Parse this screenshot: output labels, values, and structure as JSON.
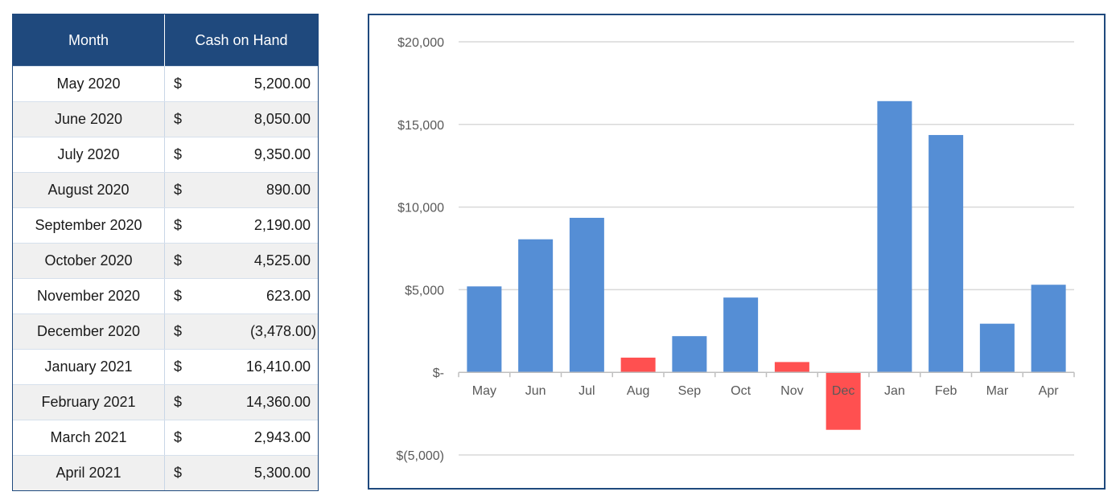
{
  "table": {
    "headers": {
      "month": "Month",
      "cash": "Cash on Hand"
    },
    "currency_symbol": "$",
    "rows": [
      {
        "month": "May 2020",
        "amount": "5,200.00"
      },
      {
        "month": "June 2020",
        "amount": "8,050.00"
      },
      {
        "month": "July 2020",
        "amount": "9,350.00"
      },
      {
        "month": "August 2020",
        "amount": "890.00"
      },
      {
        "month": "September 2020",
        "amount": "2,190.00"
      },
      {
        "month": "October 2020",
        "amount": "4,525.00"
      },
      {
        "month": "November 2020",
        "amount": "623.00"
      },
      {
        "month": "December 2020",
        "amount": "(3,478.00)"
      },
      {
        "month": "January 2021",
        "amount": "16,410.00"
      },
      {
        "month": "February 2021",
        "amount": "14,360.00"
      },
      {
        "month": "March 2021",
        "amount": "2,943.00"
      },
      {
        "month": "April 2021",
        "amount": "5,300.00"
      }
    ]
  },
  "chart_data": {
    "type": "bar",
    "categories": [
      "May",
      "Jun",
      "Jul",
      "Aug",
      "Sep",
      "Oct",
      "Nov",
      "Dec",
      "Jan",
      "Feb",
      "Mar",
      "Apr"
    ],
    "values": [
      5200,
      8050,
      9350,
      890,
      2190,
      4525,
      623,
      -3478,
      16410,
      14360,
      2943,
      5300
    ],
    "bar_colors": [
      "#558ed5",
      "#558ed5",
      "#558ed5",
      "#ff5050",
      "#558ed5",
      "#558ed5",
      "#ff5050",
      "#ff5050",
      "#558ed5",
      "#558ed5",
      "#558ed5",
      "#558ed5"
    ],
    "ylim": [
      -5000,
      20000
    ],
    "yticks": [
      20000,
      15000,
      10000,
      5000,
      0,
      -5000
    ],
    "ytick_labels": [
      "$20,000",
      "$15,000",
      "$10,000",
      "$5,000",
      "$-",
      "$(5,000)"
    ],
    "title": "",
    "xlabel": "",
    "ylabel": "",
    "grid": true,
    "legend": "none"
  }
}
